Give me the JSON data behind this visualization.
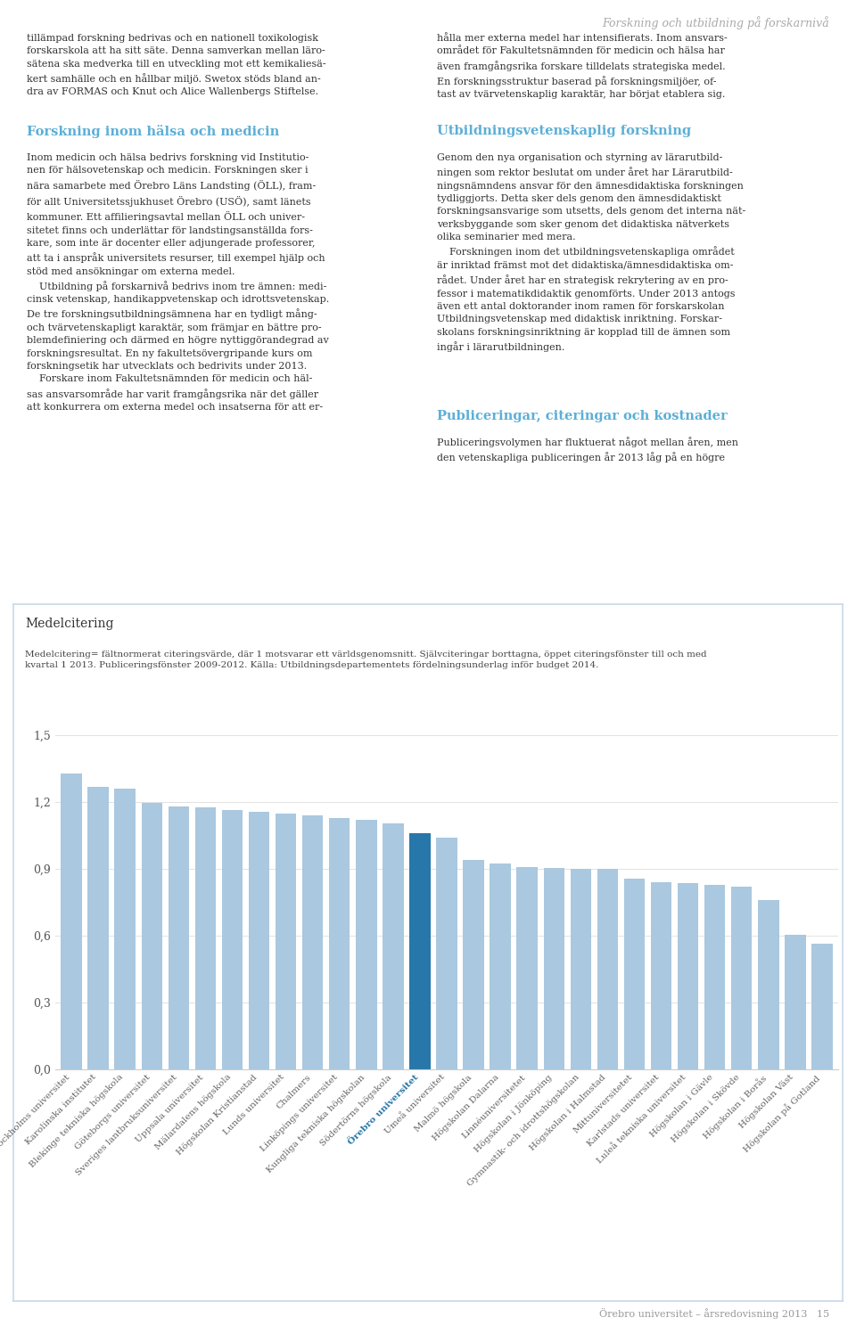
{
  "header_right": "Forskning och utbildning på forskarnivå",
  "section_header_left": "Forskning inom hälsa och medicin",
  "section_header_right1": "Utbildningsvetenskaplig forskning",
  "section_header_right2": "Publiceringar, citeringar och kostnader",
  "chart_title": "Medelcitering",
  "chart_subtitle_line1": "Medelcitering= fältnormerat citeringsvärde, där 1 motsvarar ett världsgenomsnitt. Självciteringar borttagna, öppet citeringsfönster till och med",
  "chart_subtitle_line2": "kvartal 1 2013. Publiceringsfönster 2009-2012. Källa: Utbildningsdepartementets fördelningsunderlag inför budget 2014.",
  "categories": [
    "Stockholms universitet",
    "Karolinska institutet",
    "Blekinge tekniska högskola",
    "Göteborgs universitet",
    "Sveriges lantbruksuniversitet",
    "Uppsala universitet",
    "Mälardalens högskola",
    "Högskolan Kristianstad",
    "Lunds universitet",
    "Chalmers",
    "Linköpings universitet",
    "Kungliga tekniska högskolan",
    "Södertörns högskola",
    "Örebro universitet",
    "Umeå universitet",
    "Malmö högskola",
    "Högskolan Dalarna",
    "Linnéuniversitetet",
    "Högskolan i Jönköping",
    "Gymnastik- och idrottshögskolan",
    "Högskolan i Halmstad",
    "Mittuniversitetet",
    "Karlstads universitet",
    "Luleå tekniska universitet",
    "Högskolan i Gävle",
    "Högskolan i Skövde",
    "Högskolan i Borås",
    "Högskolan Väst",
    "Högskolan på Gotland"
  ],
  "values": [
    1.33,
    1.27,
    1.26,
    1.195,
    1.18,
    1.175,
    1.165,
    1.155,
    1.15,
    1.14,
    1.13,
    1.12,
    1.105,
    1.06,
    1.04,
    0.94,
    0.925,
    0.91,
    0.905,
    0.9,
    0.9,
    0.855,
    0.84,
    0.835,
    0.83,
    0.82,
    0.76,
    0.605,
    0.565
  ],
  "highlight_index": 13,
  "highlight_color": "#2777aa",
  "normal_color": "#aac8df",
  "ylim": [
    0.0,
    1.6
  ],
  "yticks": [
    0.0,
    0.3,
    0.6,
    0.9,
    1.2,
    1.5
  ],
  "ytick_labels": [
    "0,0",
    "0,3",
    "0,6",
    "0,9",
    "1,2",
    "1,5"
  ],
  "footer": "Örebro universitet – årsredovisning 2013   15",
  "text_color": "#333333",
  "header_color": "#aaaaaa",
  "section_color": "#5bafd6",
  "body_color": "#333333",
  "box_border_color": "#c8d8e8",
  "page_bg": "#ffffff",
  "intro_left": "tillämpad forskning bedrivas och en nationell toxikologisk\nforskarskola att ha sitt säte. Denna samverkan mellan läro-\nsätena ska medverka till en utveckling mot ett kemikaliesä-\nkert samhälle och en hållbar miljö. Swetox stöds bland an-\ndra av FORMAS och Knut och Alice Wallenbergs Stiftelse.",
  "intro_right": "hålla mer externa medel har intensifierats. Inom ansvars-\nomådet för Fakultetsnämnden för medicin och hälsa har\nären framgångsrika forskare tilldelats strategiska medel.\nEn forskningsstruktur baserad på forskningsmiljöer, of-\ntast av tvärvetenskaplig karaktär, har börjat etablera sig.",
  "body_left": "Inom medicin och hälsa bedrivs forskning vid Institutio-\nnen för hälsovetenskap och medicin. Forskningen sker i\nnära samarbete med Örebro Läns Landsting (ÖLL), fram-\nför allt Universitetssjukhuset Örebro (USÖ), samt länets\nkommuner. Ett affilieringsavtal mellan ÖLL och univer-\nsitetet finns och underlättar för landstingsanställda fors-\nkare, som inte är docenter eller adjungerade professorer,\natt ta i anspråk universitets resurser, till exempel hjälp och\nstöd med ansökningar om externa medel.\n    Utbildning på forskarnivå bedrivs inom tre ämnen: medi-\ncinsk vetenskap, handikappvetenskap och idrottsvetenskap.\nDe tre forskningsutbildningsämnena har en tydligt mång-\noch tvärvetenskapligt karaktär, som främjar en bättre pro-\nblemdefiniering och därmed en högre nyttiggörandegrad av\nforskningsresultat. En ny fakultetsövergripande kurs om\nforskningsetik har utvecklats och bedrivits under 2013.\n    Forskare inom Fakultetsnämnden för medicin och häl-\nsas ansvarsområde har varit framgångsrika när det gäller\natt konkurrera om externa medel och insatserna för att er-",
  "body_right": "Genom den nya organisation och styrning av lärarutbild-\nningen som rektor beslutat om under året har Lärarutbild-\nningsnämndens ansvar för den ämnesdidaktiska forskningen\ntydliggjorts. Detta sker dels genom den ämnesdidaktiskt\nforskningsansvarige som utsetts, dels genom det interna nät-\nverksbyggande som sker genom det didaktiska nätverkets\nolika seminarier med mera.\n    Forskningen inom det utbildningsvetenskapliga området\när inriktad främst mot det didaktiska/ämnesdidaktiska om-\nrådet. Under året har en strategisk rekrytering av en pro-\nfessor i matematikdidaktik genomförts. Under 2013 antogs\näven ett antal doktorander inom ramen för forskarskolan\nUtbildningsvetenskap med didaktisk inriktning. Forskar-\nskolans forskningsinriktning är kopplad till de ämnen som\ningår i lärarutbildningen.",
  "pub_body": "Publiceringsvolymen har fluktuerat något mellan åren, men\nden vetenskapliga publiceringen år 2013 låg på en högre"
}
